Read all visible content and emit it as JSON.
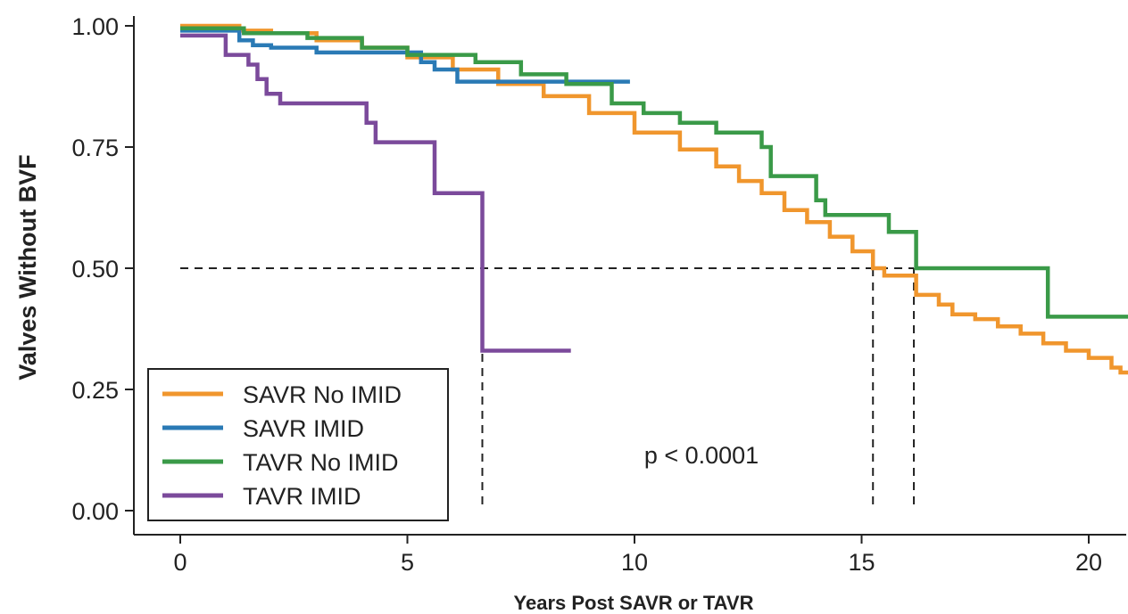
{
  "chart_data": {
    "type": "line",
    "step": true,
    "title": "",
    "xlabel": "Years Post SAVR or TAVR",
    "ylabel": "Valves Without BVF",
    "xlim": [
      0,
      21
    ],
    "ylim": [
      0,
      1
    ],
    "x_ticks": [
      0,
      5,
      10,
      15,
      20
    ],
    "x_tick_labels": [
      "0",
      "5",
      "10",
      "15",
      "20"
    ],
    "y_ticks": [
      0,
      0.25,
      0.5,
      0.75,
      1
    ],
    "y_tick_labels": [
      "0.00",
      "0.25",
      "0.50",
      "0.75",
      "1.00"
    ],
    "grid": false,
    "legend_position": "bottom-left",
    "annotation": "p < 0.0001",
    "reference_lines": {
      "y": 0.5,
      "x": [
        6.65,
        15.25,
        16.15
      ],
      "x_end": 16.15
    },
    "series": [
      {
        "name": "SAVR No IMID",
        "color": "#F0962D",
        "points": [
          [
            0,
            1
          ],
          [
            0.6,
            1
          ],
          [
            1.3,
            0.99
          ],
          [
            2,
            0.985
          ],
          [
            3,
            0.97
          ],
          [
            4,
            0.955
          ],
          [
            5,
            0.935
          ],
          [
            6,
            0.91
          ],
          [
            7,
            0.88
          ],
          [
            8,
            0.855
          ],
          [
            9,
            0.82
          ],
          [
            10,
            0.78
          ],
          [
            11,
            0.745
          ],
          [
            11.8,
            0.71
          ],
          [
            12.3,
            0.68
          ],
          [
            12.8,
            0.655
          ],
          [
            13.3,
            0.62
          ],
          [
            13.8,
            0.595
          ],
          [
            14.3,
            0.565
          ],
          [
            14.8,
            0.535
          ],
          [
            15.25,
            0.5
          ],
          [
            15.5,
            0.485
          ],
          [
            16.2,
            0.445
          ],
          [
            16.7,
            0.425
          ],
          [
            17,
            0.405
          ],
          [
            17.5,
            0.395
          ],
          [
            18,
            0.38
          ],
          [
            18.5,
            0.365
          ],
          [
            19,
            0.345
          ],
          [
            19.5,
            0.33
          ],
          [
            20,
            0.315
          ],
          [
            20.5,
            0.295
          ],
          [
            20.7,
            0.285
          ],
          [
            21,
            0.26
          ]
        ]
      },
      {
        "name": "SAVR IMID",
        "color": "#2A7AB5",
        "points": [
          [
            0,
            0.99
          ],
          [
            0.9,
            0.99
          ],
          [
            1.3,
            0.97
          ],
          [
            1.6,
            0.96
          ],
          [
            2,
            0.955
          ],
          [
            3,
            0.945
          ],
          [
            5.3,
            0.925
          ],
          [
            5.6,
            0.91
          ],
          [
            6.1,
            0.885
          ],
          [
            9.9,
            0.885
          ]
        ]
      },
      {
        "name": "TAVR No IMID",
        "color": "#3A9A48",
        "points": [
          [
            0,
            0.995
          ],
          [
            1.4,
            0.985
          ],
          [
            2.8,
            0.975
          ],
          [
            4,
            0.955
          ],
          [
            5,
            0.94
          ],
          [
            6.5,
            0.925
          ],
          [
            7.5,
            0.9
          ],
          [
            8.5,
            0.88
          ],
          [
            9.5,
            0.84
          ],
          [
            10.2,
            0.82
          ],
          [
            11,
            0.8
          ],
          [
            11.8,
            0.78
          ],
          [
            12.8,
            0.75
          ],
          [
            13,
            0.69
          ],
          [
            13.8,
            0.69
          ],
          [
            14,
            0.64
          ],
          [
            14.2,
            0.61
          ],
          [
            15.6,
            0.61
          ],
          [
            15.6,
            0.575
          ],
          [
            15.9,
            0.575
          ],
          [
            16.2,
            0.5
          ],
          [
            19.1,
            0.5
          ],
          [
            19.1,
            0.4
          ],
          [
            21,
            0.4
          ]
        ]
      },
      {
        "name": "TAVR IMID",
        "color": "#7B4A9B",
        "points": [
          [
            0,
            0.98
          ],
          [
            0.9,
            0.98
          ],
          [
            1,
            0.94
          ],
          [
            1.5,
            0.92
          ],
          [
            1.7,
            0.89
          ],
          [
            1.9,
            0.86
          ],
          [
            2.2,
            0.84
          ],
          [
            4,
            0.84
          ],
          [
            4.1,
            0.8
          ],
          [
            4.3,
            0.76
          ],
          [
            5.6,
            0.76
          ],
          [
            5.6,
            0.655
          ],
          [
            6.65,
            0.655
          ],
          [
            6.65,
            0.33
          ],
          [
            8.6,
            0.33
          ]
        ]
      }
    ]
  }
}
